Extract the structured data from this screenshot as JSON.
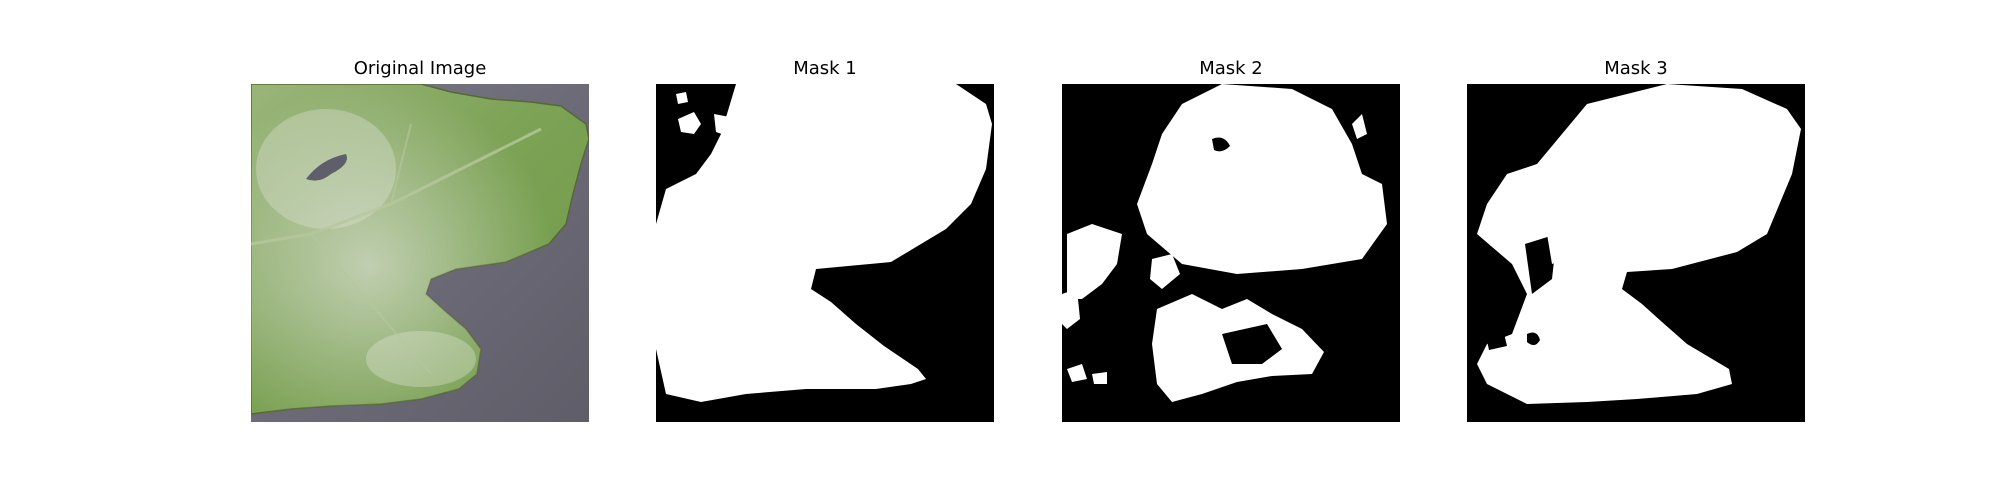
{
  "panels": [
    {
      "title": "Original Image",
      "content": "photo of green leaf with white powdery coating on gray background"
    },
    {
      "title": "Mask 1",
      "content": "binary segmentation mask"
    },
    {
      "title": "Mask 2",
      "content": "binary segmentation mask"
    },
    {
      "title": "Mask 3",
      "content": "binary segmentation mask"
    }
  ],
  "colors": {
    "background": "#ffffff",
    "mask_background": "#000000",
    "mask_foreground": "#ffffff",
    "leaf_green": "#6f9a4f",
    "photo_background": "#6e6d78"
  }
}
